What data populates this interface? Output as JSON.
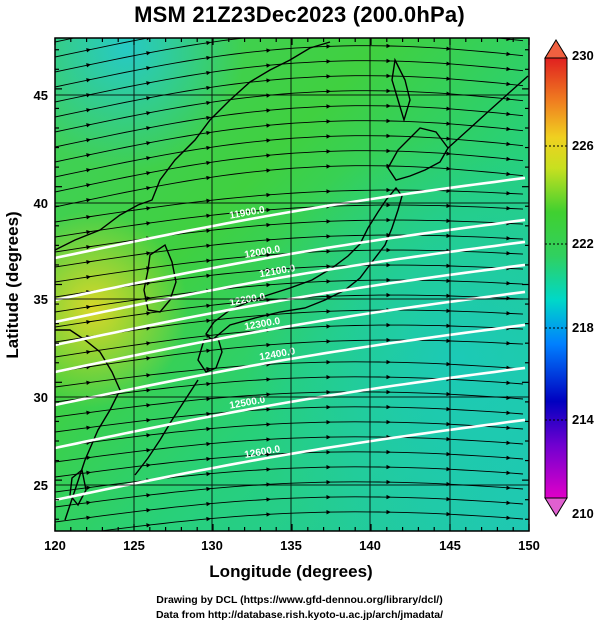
{
  "title": "MSM 21Z23Dec2023 (200.0hPa)",
  "axes": {
    "xlabel": "Longitude (degrees)",
    "ylabel": "Latitude  (degrees)",
    "xticks": [
      "120",
      "125",
      "130",
      "135",
      "140",
      "145",
      "150"
    ],
    "yticks": [
      "25",
      "30",
      "35",
      "40",
      "45"
    ],
    "xrange": [
      120,
      150
    ],
    "yrange": [
      22.4,
      47.6
    ]
  },
  "colorbar": {
    "ticks": [
      "230",
      "226",
      "222",
      "218",
      "214",
      "210"
    ],
    "range": [
      210,
      230
    ],
    "unit_hint": "temperature (K)"
  },
  "contours": {
    "labels": [
      "11900.0",
      "12000.0",
      "12100.0",
      "12200.0",
      "12300.0",
      "12400.0",
      "12500.0",
      "12600.0"
    ]
  },
  "footer": {
    "line1": "Drawing by DCL (https://www.gfd-dennou.org/library/dcl/)",
    "line2": "Data from http://database.rish.kyoto-u.ac.jp/arch/jmadata/"
  },
  "colors": {
    "field_main": "#3ad05a",
    "field_warm": "#d8d830",
    "field_cool": "#20d0b8",
    "contour": "#ffffff",
    "land_outline": "#000000"
  }
}
